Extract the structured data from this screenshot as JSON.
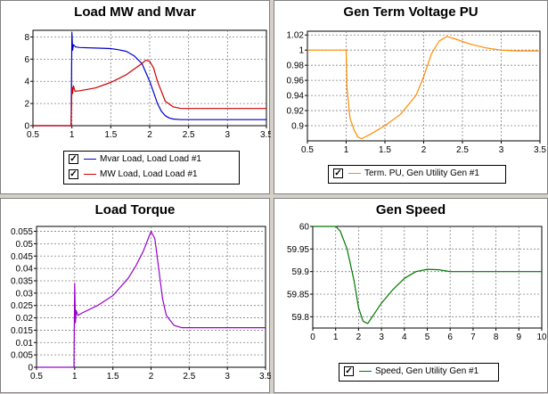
{
  "chart_data": [
    {
      "type": "line",
      "title": "Load MW and Mvar",
      "xlim": [
        0.5,
        3.5
      ],
      "ylim": [
        0,
        8.6
      ],
      "xticks": [
        "0.5",
        "1",
        "1.5",
        "2",
        "2.5",
        "3",
        "3.5"
      ],
      "yticks": [
        "0",
        "2",
        "4",
        "6",
        "8"
      ],
      "grid": true,
      "legend_position": "bottom-center",
      "series": [
        {
          "name": "Mvar Load, Load Load #1",
          "color": "#0000cc",
          "x": [
            0.5,
            0.99,
            1.0,
            1.01,
            1.02,
            1.05,
            1.1,
            1.3,
            1.5,
            1.6,
            1.7,
            1.8,
            1.9,
            2.0,
            2.05,
            2.1,
            2.15,
            2.2,
            2.25,
            2.3,
            2.4,
            3.5
          ],
          "y": [
            0,
            0,
            8.4,
            6.8,
            7.3,
            7.1,
            7.05,
            7.0,
            6.95,
            6.85,
            6.7,
            6.3,
            5.6,
            4.0,
            3.0,
            2.0,
            1.3,
            0.9,
            0.7,
            0.6,
            0.55,
            0.55
          ]
        },
        {
          "name": "MW Load, Load Load #1",
          "color": "#cc0000",
          "x": [
            0.5,
            0.99,
            1.0,
            1.01,
            1.02,
            1.04,
            1.1,
            1.3,
            1.5,
            1.7,
            1.9,
            1.95,
            2.0,
            2.05,
            2.1,
            2.2,
            2.3,
            2.4,
            3.5
          ],
          "y": [
            0,
            0,
            3.5,
            2.9,
            3.6,
            3.1,
            3.15,
            3.4,
            3.9,
            4.6,
            5.6,
            5.9,
            5.8,
            5.2,
            4.0,
            2.2,
            1.7,
            1.55,
            1.55
          ]
        }
      ]
    },
    {
      "type": "line",
      "title": "Gen Term Voltage PU",
      "xlim": [
        0.5,
        3.5
      ],
      "ylim": [
        0.88,
        1.025
      ],
      "xticks": [
        "0.5",
        "1",
        "1.5",
        "2",
        "2.5",
        "3",
        "3.5"
      ],
      "yticks": [
        "0.9",
        "0.92",
        "0.94",
        "0.96",
        "0.98",
        "1",
        "1.02"
      ],
      "grid": true,
      "legend_position": "bottom-center",
      "series": [
        {
          "name": "Term. PU, Gen Utility Gen #1",
          "color": "#ff8c00",
          "x": [
            0.5,
            1.0,
            1.01,
            1.05,
            1.1,
            1.15,
            1.2,
            1.3,
            1.5,
            1.7,
            1.9,
            2.0,
            2.1,
            2.2,
            2.3,
            2.4,
            2.6,
            2.8,
            3.0,
            3.2,
            3.5
          ],
          "y": [
            1.0,
            1.0,
            0.95,
            0.91,
            0.895,
            0.885,
            0.883,
            0.888,
            0.9,
            0.915,
            0.94,
            0.965,
            0.995,
            1.012,
            1.018,
            1.015,
            1.008,
            1.003,
            1.0,
            0.999,
            0.999
          ]
        }
      ]
    },
    {
      "type": "line",
      "title": "Load Torque",
      "xlim": [
        0.5,
        3.5
      ],
      "ylim": [
        0,
        0.057
      ],
      "xticks": [
        "0.5",
        "1",
        "1.5",
        "2",
        "2.5",
        "3",
        "3.5"
      ],
      "yticks": [
        "0",
        "0.005",
        "0.01",
        "0.015",
        "0.02",
        "0.025",
        "0.03",
        "0.035",
        "0.04",
        "0.045",
        "0.05",
        "0.055"
      ],
      "grid": true,
      "series": [
        {
          "name": "",
          "color": "#9900cc",
          "x": [
            0.5,
            0.99,
            1.0,
            1.01,
            1.02,
            1.04,
            1.1,
            1.3,
            1.5,
            1.7,
            1.8,
            1.9,
            1.95,
            2.0,
            2.05,
            2.1,
            2.15,
            2.2,
            2.3,
            2.4,
            3.5
          ],
          "y": [
            0,
            0,
            0.034,
            0.018,
            0.023,
            0.021,
            0.022,
            0.025,
            0.029,
            0.036,
            0.041,
            0.047,
            0.051,
            0.055,
            0.052,
            0.04,
            0.028,
            0.021,
            0.017,
            0.016,
            0.016
          ]
        }
      ]
    },
    {
      "type": "line",
      "title": "Gen Speed",
      "xlim": [
        0,
        10
      ],
      "ylim": [
        59.775,
        60
      ],
      "xticks": [
        "0",
        "1",
        "2",
        "3",
        "4",
        "5",
        "6",
        "7",
        "8",
        "9",
        "10"
      ],
      "yticks": [
        "59.8",
        "59.85",
        "59.9",
        "59.95",
        "60"
      ],
      "grid": true,
      "legend_position": "bottom-center",
      "series": [
        {
          "name": "Speed, Gen Utility Gen #1",
          "color": "#007700",
          "x": [
            0,
            1.0,
            1.2,
            1.5,
            1.8,
            2.0,
            2.2,
            2.4,
            2.6,
            3.0,
            3.5,
            4.0,
            4.5,
            5.0,
            5.5,
            6.0,
            7.0,
            8.0,
            9.0,
            10.0
          ],
          "y": [
            60,
            60,
            59.99,
            59.95,
            59.88,
            59.82,
            59.79,
            59.785,
            59.8,
            59.83,
            59.86,
            59.885,
            59.9,
            59.905,
            59.904,
            59.9,
            59.9,
            59.9,
            59.9,
            59.9
          ]
        }
      ]
    }
  ]
}
